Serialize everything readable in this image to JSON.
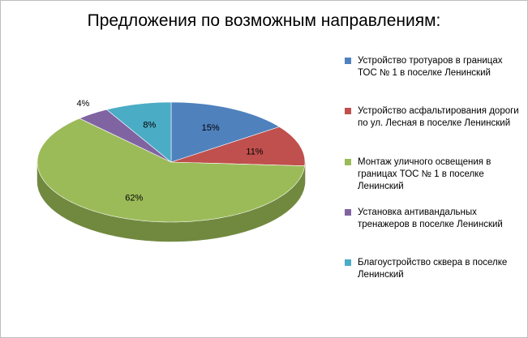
{
  "chart_data": {
    "type": "pie",
    "title": "Предложения по возможным направлениям:",
    "categories": [
      "Устройство тротуаров в границах ТОС № 1 в поселке Ленинский",
      "Устройство асфальтирования дороги по ул. Лесная в поселке Ленинский",
      "Монтаж уличного освещения в границах ТОС № 1 в поселке Ленинский",
      "Установка антивандальных тренажеров в поселке Ленинский",
      "Благоустройство сквера в поселке Ленинский"
    ],
    "values": [
      15,
      11,
      62,
      4,
      8
    ],
    "data_labels": [
      "15%",
      "11%",
      "62%",
      "4%",
      "8%"
    ],
    "colors": [
      "#4F81BD",
      "#C0504D",
      "#9BBB59",
      "#8064A2",
      "#4BACC6"
    ],
    "side_colors": [
      "#385D8A",
      "#8C3836",
      "#71893F",
      "#5C4776",
      "#357D91"
    ],
    "legend_position": "right",
    "style": "3d"
  }
}
